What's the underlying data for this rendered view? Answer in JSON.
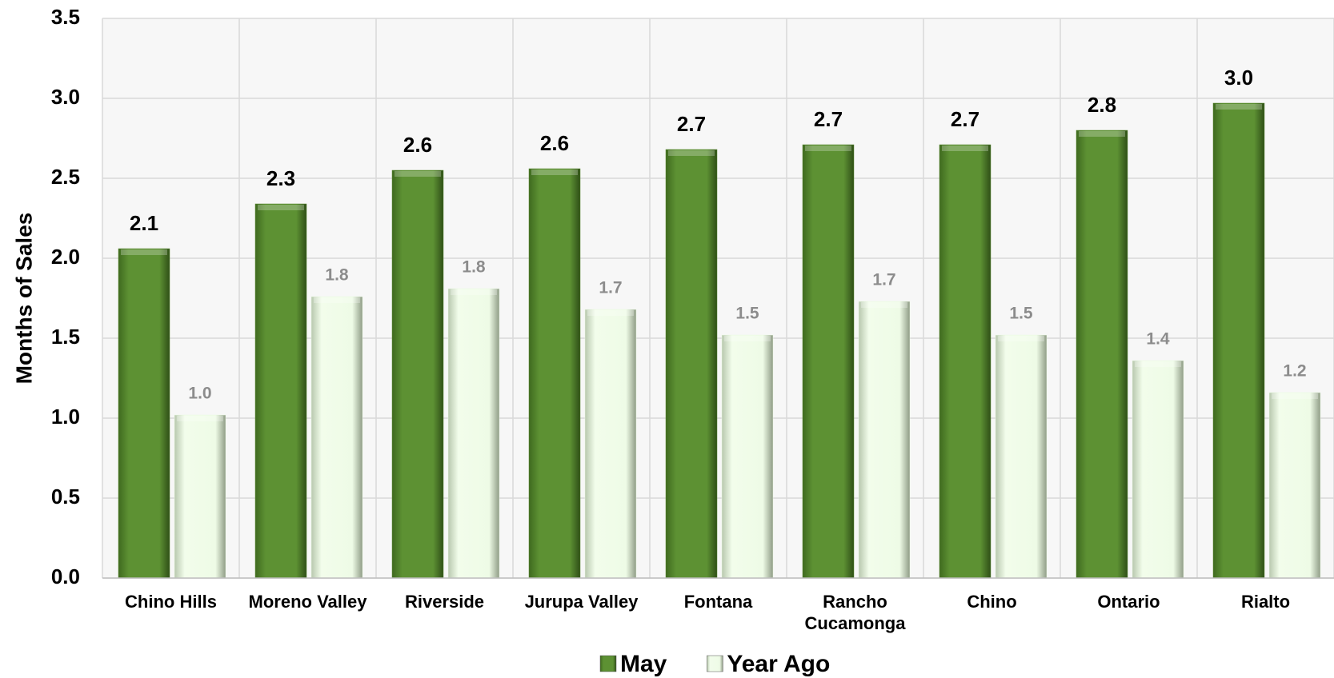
{
  "chart_data": {
    "type": "bar",
    "y_label": "Months of Sales",
    "categories": [
      "Chino Hills",
      "Moreno Valley",
      "Riverside",
      "Jurupa Valley",
      "Fontana",
      "Rancho Cucamonga",
      "Chino",
      "Ontario",
      "Rialto"
    ],
    "series": [
      {
        "name": "May",
        "color": "#5a8a32",
        "values": [
          2.06,
          2.34,
          2.55,
          2.56,
          2.68,
          2.71,
          2.71,
          2.8,
          2.97
        ],
        "value_labels": [
          "2.1",
          "2.3",
          "2.6",
          "2.6",
          "2.7",
          "2.7",
          "2.7",
          "2.8",
          "3.0"
        ]
      },
      {
        "name": "Year Ago",
        "color": "#eefbe6",
        "values": [
          1.02,
          1.76,
          1.81,
          1.68,
          1.52,
          1.73,
          1.52,
          1.36,
          1.16
        ],
        "value_labels": [
          "1.0",
          "1.8",
          "1.8",
          "1.7",
          "1.5",
          "1.7",
          "1.5",
          "1.4",
          "1.2"
        ]
      }
    ],
    "ylim": [
      0,
      3.5
    ],
    "yticks": [
      {
        "value": 0,
        "label": "0.0"
      },
      0.5,
      {
        "value": 1,
        "label": "1.0"
      },
      1.5,
      {
        "value": 2,
        "label": "2.0"
      },
      2.5,
      {
        "value": 3,
        "label": "3.0"
      },
      3.5
    ],
    "grid": true,
    "legend": "bottom"
  }
}
